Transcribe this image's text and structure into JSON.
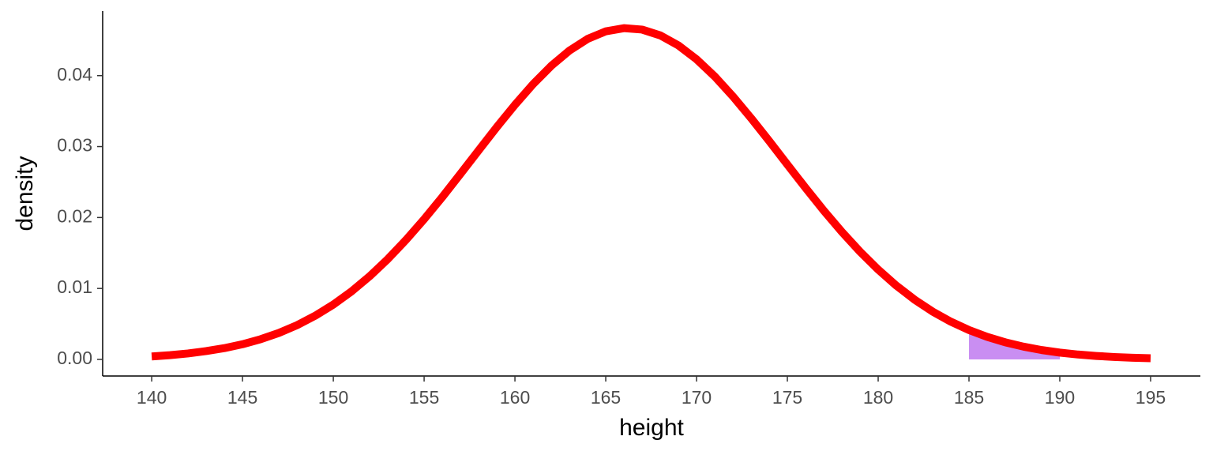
{
  "chart_data": {
    "type": "density",
    "x_label": "height",
    "y_label": "density",
    "curve": {
      "color": "#ff0000",
      "x": [
        140,
        141,
        142,
        143,
        144,
        145,
        146,
        147,
        148,
        149,
        150,
        151,
        152,
        153,
        154,
        155,
        156,
        157,
        158,
        159,
        160,
        161,
        162,
        163,
        164,
        165,
        166,
        167,
        168,
        169,
        170,
        171,
        172,
        173,
        174,
        175,
        176,
        177,
        178,
        179,
        180,
        181,
        182,
        183,
        184,
        185,
        186,
        187,
        188,
        189,
        190,
        191,
        192,
        193,
        194,
        195
      ],
      "values": [
        0.00042,
        0.0006,
        0.00084,
        0.00117,
        0.00159,
        0.00214,
        0.00285,
        0.00373,
        0.00482,
        0.00615,
        0.00773,
        0.00958,
        0.01172,
        0.01414,
        0.01684,
        0.01976,
        0.02288,
        0.02615,
        0.02945,
        0.03274,
        0.03588,
        0.0388,
        0.04138,
        0.04353,
        0.04517,
        0.04624,
        0.04669,
        0.04649,
        0.04567,
        0.04426,
        0.0423,
        0.03988,
        0.03708,
        0.03401,
        0.03078,
        0.02746,
        0.02418,
        0.02099,
        0.01798,
        0.01519,
        0.01266,
        0.0104,
        0.00843,
        0.00674,
        0.00532,
        0.00414,
        0.00318,
        0.00241,
        0.0018,
        0.00132,
        0.00096,
        0.00069,
        0.00049,
        0.00034,
        0.00023,
        0.00016
      ]
    },
    "area": {
      "color": "#c98ef2",
      "x": [
        185,
        186,
        187,
        188,
        189,
        190
      ],
      "values": [
        0.00414,
        0.00318,
        0.00241,
        0.0018,
        0.00132,
        0.00096
      ]
    },
    "xlim": [
      137.3,
      197.74
    ],
    "ylim": [
      -0.00234,
      0.0491
    ],
    "xticks": [
      140,
      145,
      150,
      155,
      160,
      165,
      170,
      175,
      180,
      185,
      190,
      195
    ],
    "yticks": [
      {
        "value": 0,
        "label": "0.00"
      },
      0.01,
      0.02,
      0.03,
      0.04
    ]
  }
}
